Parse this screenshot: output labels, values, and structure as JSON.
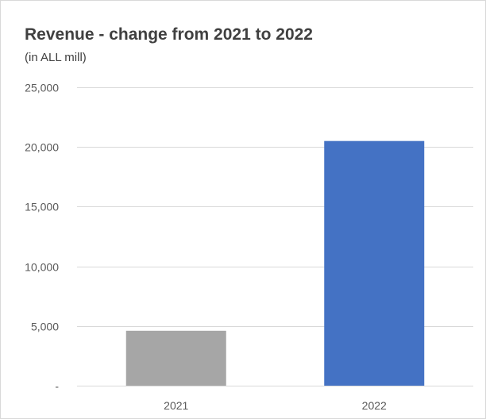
{
  "chart_data": {
    "type": "bar",
    "title": "Revenue - change from 2021 to 2022",
    "subtitle": "(in ALL mill)",
    "categories": [
      "2021",
      "2022"
    ],
    "values": [
      4600,
      20500
    ],
    "ylim": [
      0,
      25000
    ],
    "yticks": [
      0,
      5000,
      10000,
      15000,
      20000,
      25000
    ],
    "ytick_labels": [
      "-",
      "5,000",
      "10,000",
      "15,000",
      "20,000",
      "25,000"
    ],
    "bar_colors": [
      "#a6a6a6",
      "#4472c4"
    ],
    "gridline_color": "#d9d9d9",
    "grid": true,
    "legend": "none"
  }
}
